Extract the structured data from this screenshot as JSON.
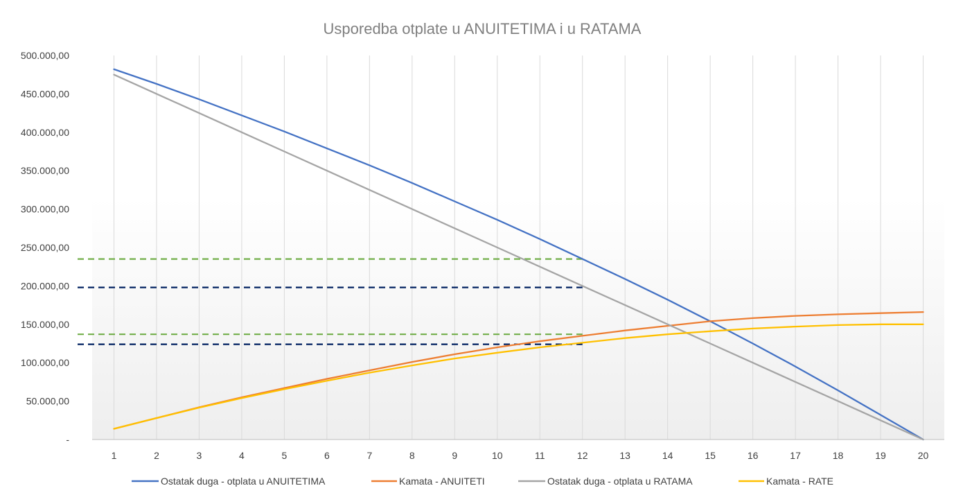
{
  "chart_data": {
    "type": "line",
    "title": "Usporedba otplate u ANUITETIMA i u RATAMA",
    "xlabel": "",
    "ylabel": "",
    "categories": [
      "1",
      "2",
      "3",
      "4",
      "5",
      "6",
      "7",
      "8",
      "9",
      "10",
      "11",
      "12",
      "13",
      "14",
      "15",
      "16",
      "17",
      "18",
      "19",
      "20"
    ],
    "ylim": [
      0,
      500000
    ],
    "y_tick_labels": [
      "-",
      "50.000,00",
      "100.000,00",
      "150.000,00",
      "200.000,00",
      "250.000,00",
      "300.000,00",
      "350.000,00",
      "400.000,00",
      "450.000,00",
      "500.000,00"
    ],
    "grid": "vertical",
    "legend_position": "bottom",
    "series": [
      {
        "name": "Ostatak duga - otplata u ANUITETIMA",
        "color": "#4472c4",
        "values": [
          482000,
          463000,
          443000,
          422000,
          401000,
          379000,
          357000,
          334000,
          310000,
          286000,
          261000,
          235000,
          209000,
          182000,
          154000,
          125000,
          95000,
          64000,
          32000,
          0
        ]
      },
      {
        "name": "Kamata - ANUITETI",
        "color": "#ed7d31",
        "values": [
          14000,
          28000,
          42000,
          55000,
          67000,
          79000,
          90000,
          101000,
          111000,
          120000,
          128000,
          135000,
          142000,
          148000,
          154000,
          158000,
          161000,
          163000,
          164500,
          166000
        ]
      },
      {
        "name": "Ostatak duga - otplata u RATAMA",
        "color": "#a5a5a5",
        "values": [
          475000,
          450000,
          425000,
          400000,
          375000,
          350000,
          325000,
          300000,
          275000,
          250000,
          225000,
          200000,
          175000,
          150000,
          125000,
          100000,
          75000,
          50000,
          25000,
          0
        ]
      },
      {
        "name": "Kamata - RATE",
        "color": "#ffc000",
        "values": [
          14000,
          28000,
          41500,
          54000,
          65500,
          76500,
          87000,
          96500,
          105500,
          113000,
          120000,
          126000,
          132000,
          137000,
          141000,
          144500,
          147000,
          149000,
          150000,
          150000
        ]
      }
    ],
    "reference_lines": [
      {
        "y": 235000,
        "x_end": 12,
        "color": "#70ad47"
      },
      {
        "y": 198000,
        "x_end": 12,
        "color": "#002060"
      },
      {
        "y": 137000,
        "x_end": 12,
        "color": "#70ad47"
      },
      {
        "y": 124000,
        "x_end": 12,
        "color": "#002060"
      }
    ]
  }
}
